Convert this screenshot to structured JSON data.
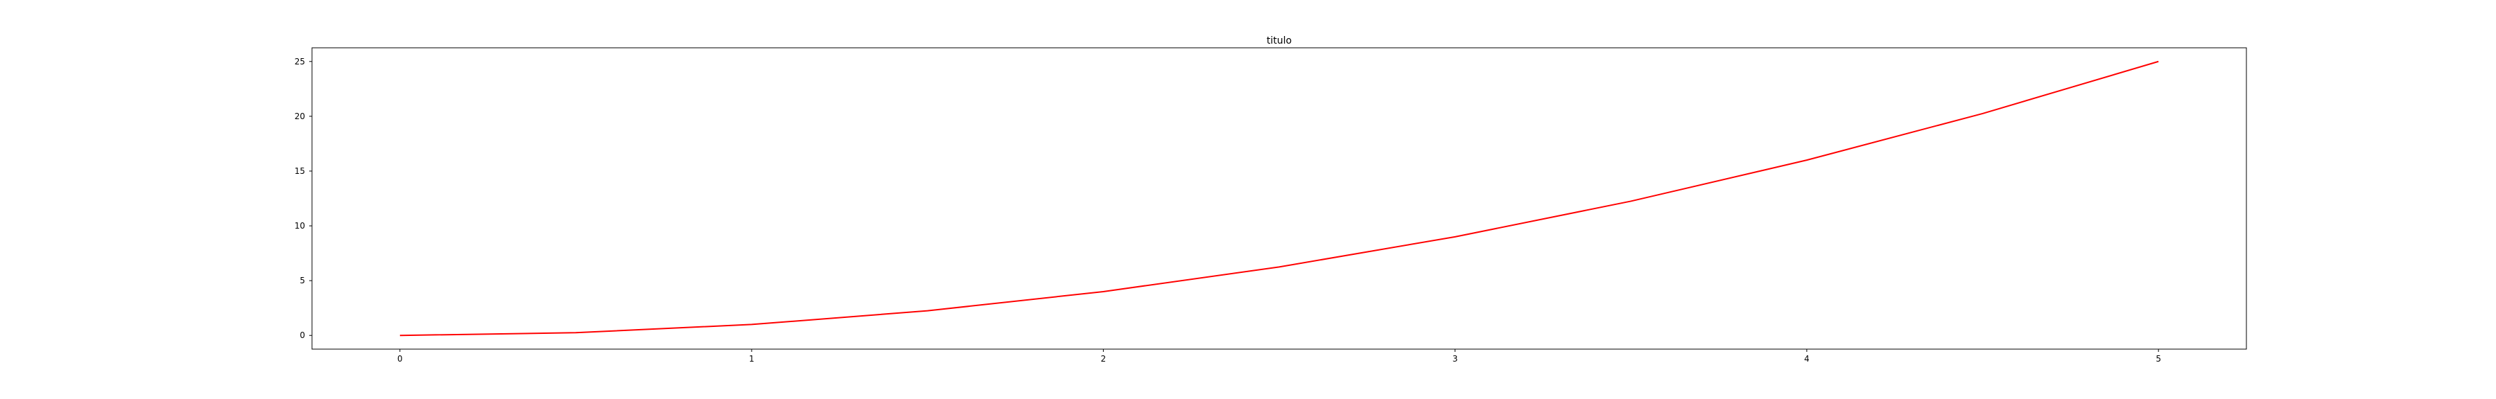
{
  "chart_data": {
    "type": "line",
    "title": "titulo",
    "xlabel": "",
    "ylabel": "",
    "xlim": [
      -0.25,
      5.25
    ],
    "ylim": [
      -1.25,
      26.25
    ],
    "x_ticks": [
      0,
      1,
      2,
      3,
      4,
      5
    ],
    "y_ticks": [
      0,
      5,
      10,
      15,
      20,
      25
    ],
    "grid": false,
    "series": [
      {
        "color": "#ff0000",
        "x": [
          0,
          0.5,
          1,
          1.5,
          2,
          2.5,
          3,
          3.5,
          4,
          4.5,
          5
        ],
        "y": [
          0,
          0.25,
          1,
          2.25,
          4,
          6.25,
          9,
          12.25,
          16,
          20.25,
          25
        ]
      }
    ]
  }
}
